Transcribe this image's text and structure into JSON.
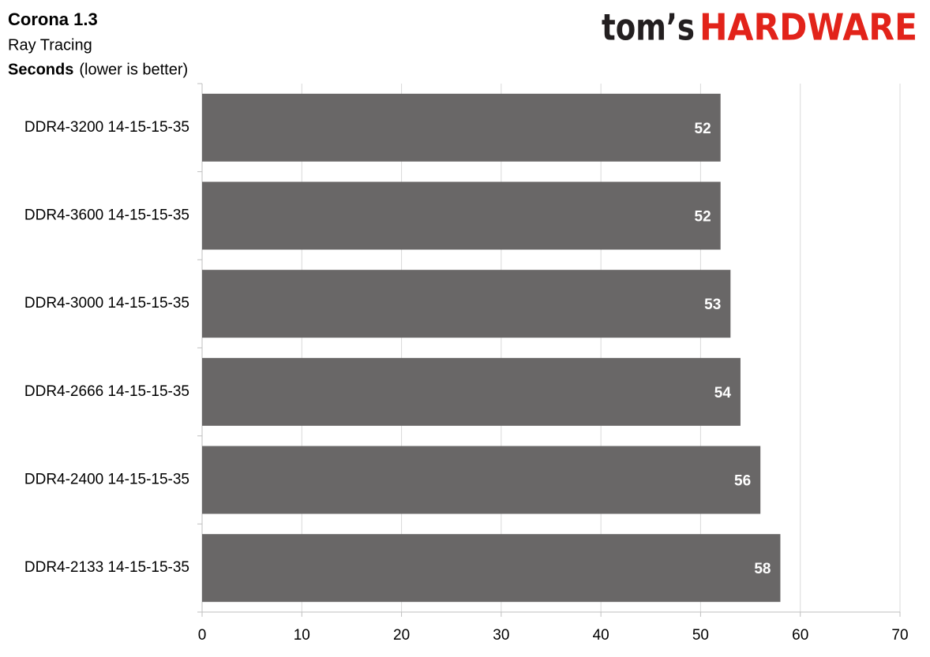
{
  "chart_data": {
    "type": "bar",
    "orientation": "horizontal",
    "title": "Corona 1.3",
    "subtitle": "Ray Tracing",
    "axis_label": "Seconds",
    "axis_note": "(lower is better)",
    "logo": {
      "prefix": "tom’s",
      "brand": "HARDWARE"
    },
    "categories": [
      "DDR4-3200 14-15-15-35",
      "DDR4-3600 14-15-15-35",
      "DDR4-3000 14-15-15-35",
      "DDR4-2666 14-15-15-35",
      "DDR4-2400 14-15-15-35",
      "DDR4-2133 14-15-15-35"
    ],
    "values": [
      52,
      52,
      53,
      54,
      56,
      58
    ],
    "color": "#696767",
    "xlim": [
      0,
      70
    ],
    "xticks": [
      0,
      10,
      20,
      30,
      40,
      50,
      60,
      70
    ],
    "grid": true
  }
}
